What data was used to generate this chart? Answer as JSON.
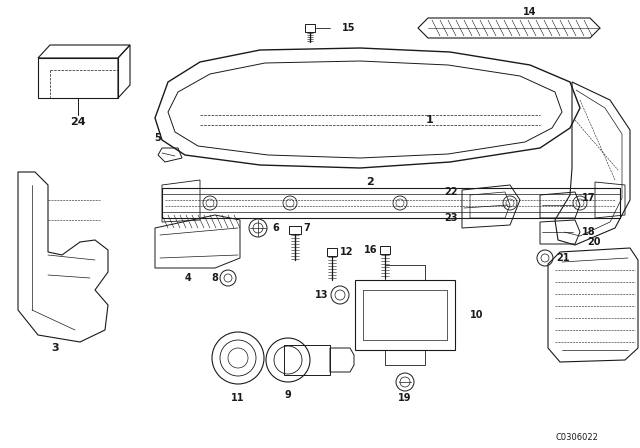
{
  "bg_color": "#ffffff",
  "line_color": "#1a1a1a",
  "diagram_code": "C0306022",
  "fig_width": 6.4,
  "fig_height": 4.48,
  "dpi": 100
}
